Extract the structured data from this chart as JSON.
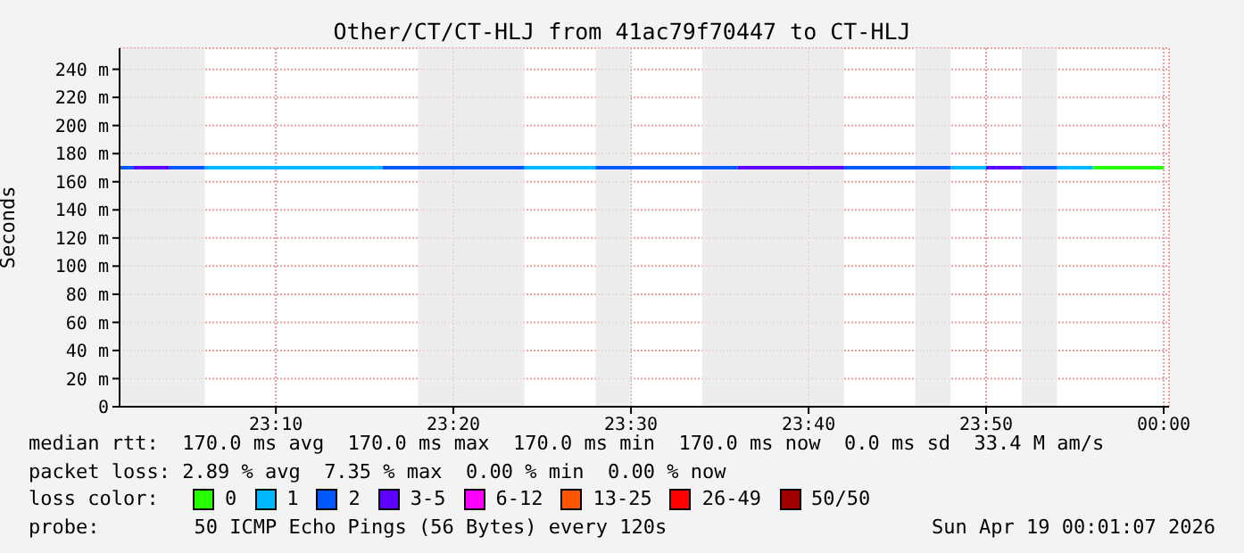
{
  "chart_data": {
    "type": "line",
    "title": "Other/CT/CT-HLJ from 41ac79f70447 to CT-HLJ",
    "ylabel": "Seconds",
    "legend_title": "loss color:",
    "legend": "bottom",
    "grid": true,
    "xlim": [
      23.02,
      24.005
    ],
    "xticks": [
      {
        "value": 23.1667,
        "label": "23:10"
      },
      {
        "value": 23.3333,
        "label": "23:20"
      },
      {
        "value": 23.5,
        "label": "23:30"
      },
      {
        "value": 23.6667,
        "label": "23:40"
      },
      {
        "value": 23.8333,
        "label": "23:50"
      },
      {
        "value": 24,
        "label": "00:00"
      }
    ],
    "ylim": [
      0,
      255
    ],
    "yticks": [
      0,
      {
        "value": 20,
        "label": "20 m"
      },
      {
        "value": 40,
        "label": "40 m"
      },
      {
        "value": 60,
        "label": "60 m"
      },
      {
        "value": 80,
        "label": "80 m"
      },
      {
        "value": 100,
        "label": "100 m"
      },
      {
        "value": 120,
        "label": "120 m"
      },
      {
        "value": 140,
        "label": "140 m"
      },
      {
        "value": 160,
        "label": "160 m"
      },
      {
        "value": 180,
        "label": "180 m"
      },
      {
        "value": 200,
        "label": "200 m"
      },
      {
        "value": 220,
        "label": "220 m"
      },
      {
        "value": 240,
        "label": "240 m"
      }
    ],
    "series": [
      {
        "name": "0",
        "color": "#26ff00",
        "x": [
          23.9333,
          24
        ],
        "values": [
          170,
          170
        ]
      },
      {
        "name": "1",
        "color": "#00b8ff",
        "x": [
          23.1,
          23.2667,
          23.3,
          23.4,
          23.4667,
          23.6,
          23.8,
          23.8333,
          23.85,
          23.9,
          23.9333
        ],
        "values": [
          170,
          170,
          null,
          170,
          170,
          null,
          170,
          170,
          null,
          170,
          170
        ]
      },
      {
        "name": "2",
        "color": "#0059ff",
        "x": [
          23.02,
          23.0333,
          23.05,
          23.0667,
          23.1,
          23.2,
          23.2667,
          23.4,
          23.43,
          23.4667,
          23.6,
          23.65,
          23.7,
          23.8,
          23.85,
          23.8667,
          23.9
        ],
        "values": [
          170,
          170,
          null,
          170,
          170,
          null,
          170,
          170,
          null,
          170,
          170,
          null,
          170,
          170,
          null,
          170,
          170
        ]
      },
      {
        "name": "3-5",
        "color": "#5e00ff",
        "x": [
          23.0333,
          23.0667,
          23.3,
          23.6,
          23.7,
          23.75,
          23.8333,
          23.8667
        ],
        "values": [
          170,
          170,
          null,
          170,
          170,
          null,
          170,
          170
        ]
      },
      {
        "name": "6-12",
        "color": "#ff00ff"
      },
      {
        "name": "13-25",
        "color": "#ff5500"
      },
      {
        "name": "26-49",
        "color": "#ff0000"
      },
      {
        "name": "50/50",
        "color": "#a10000"
      }
    ],
    "bands": [
      {
        "axis": "x",
        "from": 23.02,
        "to": 23.1,
        "color": "#e8e8e8"
      },
      {
        "axis": "x",
        "from": 23.3,
        "to": 23.4,
        "color": "#e8e8e8"
      },
      {
        "axis": "x",
        "from": 23.4667,
        "to": 23.5,
        "color": "#e8e8e8"
      },
      {
        "axis": "x",
        "from": 23.5667,
        "to": 23.7,
        "color": "#e8e8e8"
      },
      {
        "axis": "x",
        "from": 23.7667,
        "to": 23.8,
        "color": "#e8e8e8"
      },
      {
        "axis": "x",
        "from": 23.8667,
        "to": 23.9,
        "color": "#e8e8e8"
      }
    ],
    "annotations": [
      "median rtt:  170.0 ms avg  170.0 ms max  170.0 ms min  170.0 ms now  0.0 ms sd  33.4 M am/s",
      "packet loss: 2.89 % avg  7.35 % max  0.00 % min  0.00 % now",
      "probe:        50 ICMP Echo Pings (56 Bytes) every 120s",
      "Sun Apr 19 00:01:07 2026"
    ]
  }
}
